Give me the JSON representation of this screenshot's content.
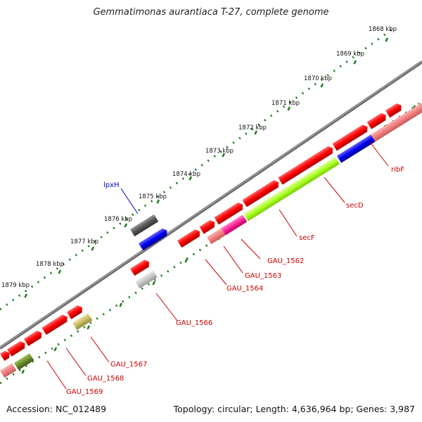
{
  "title": "Gemmatimonas aurantiaca T-27, complete genome",
  "footer": {
    "accession": "Accession: NC_012489",
    "stats": "Topology: circular; Length: 4,636,964 bp; Genes: 3,987"
  },
  "kbp_labels": [
    "1868 kbp",
    "1869 kbp",
    "1870 kbp",
    "1871 kbp",
    "1872 kbp",
    "1873 kbp",
    "1874 kbp",
    "1875 kbp",
    "1876 kbp",
    "1877 kbp",
    "1878 kbp",
    "1879 kbp"
  ],
  "gene_labels": [
    "lpxH",
    "ribF",
    "secD",
    "secF",
    "GAU_1562",
    "GAU_1563",
    "GAU_1564",
    "GAU_1566",
    "GAU_1567",
    "GAU_1568",
    "GAU_1569"
  ],
  "colors": {
    "cds": "#ff0000",
    "cds_light": "#f08080",
    "backbone": "#808080",
    "tick": "#1a7a1a",
    "blue": "#0000ee",
    "green": "#aaff22",
    "magenta": "#ff22aa",
    "gray_dark": "#555555",
    "gray_light": "#c8c8c8",
    "olive": "#c8c070",
    "olive_dark": "#6b8c2a"
  }
}
